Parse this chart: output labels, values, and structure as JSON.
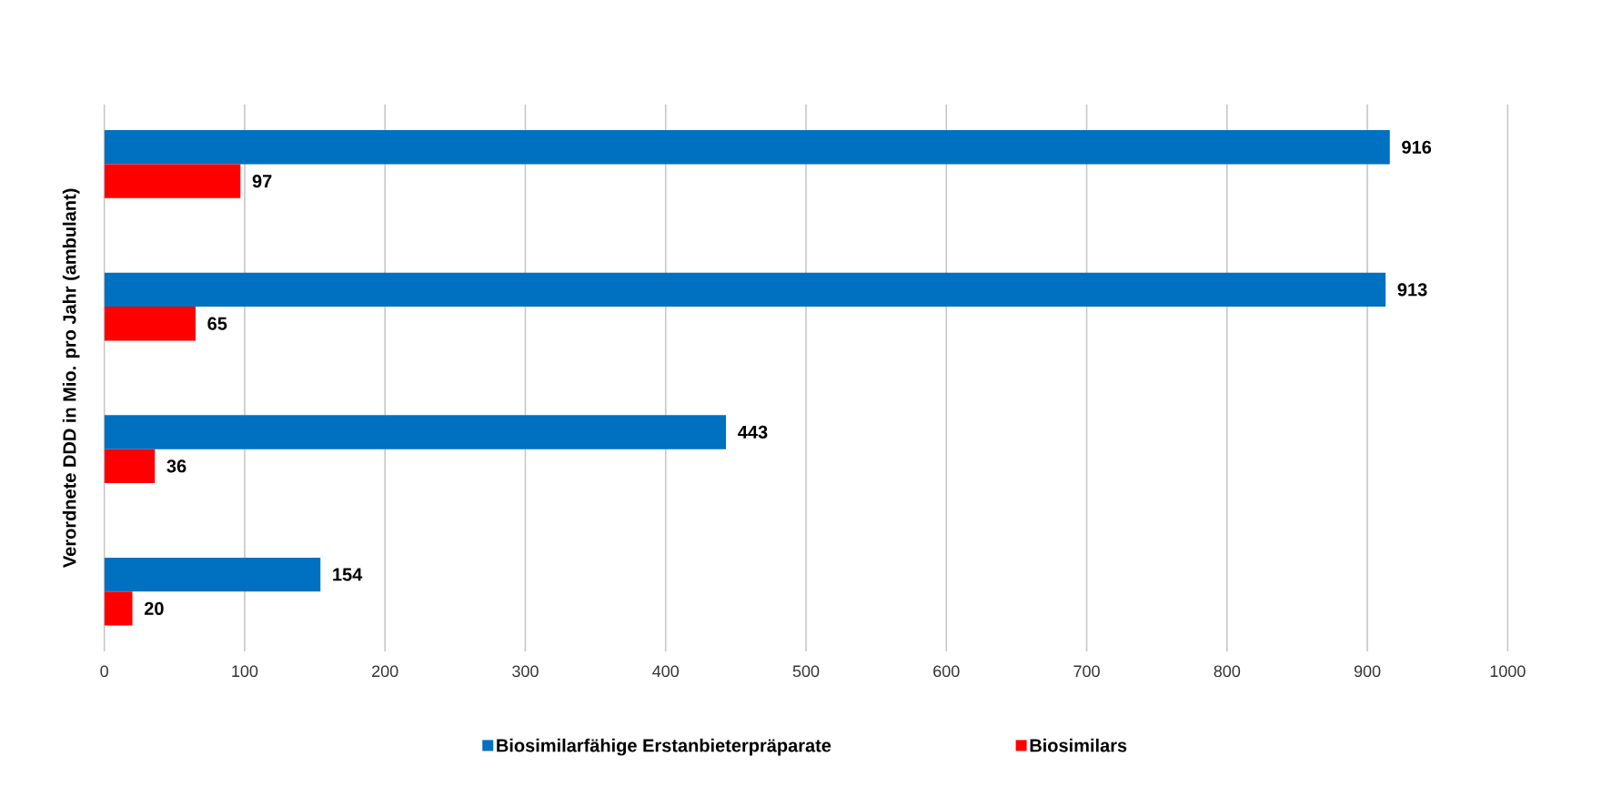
{
  "chart_data": {
    "type": "bar",
    "orientation": "horizontal",
    "ylabel": "Verordnete DDD in Mio. pro Jahr (ambulant)",
    "categories": [
      null,
      null,
      null,
      null
    ],
    "series": [
      {
        "name": "Biosimilarfähige Erstanbieterpräparate",
        "color": "#0070c0",
        "values": [
          916,
          913,
          443,
          154
        ]
      },
      {
        "name": "Biosimilars",
        "color": "#ff0000",
        "values": [
          97,
          65,
          36,
          20
        ]
      }
    ],
    "xlim": [
      0,
      1000
    ],
    "xticks": [
      0,
      100,
      200,
      300,
      400,
      500,
      600,
      700,
      800,
      900,
      1000
    ],
    "grid": "x",
    "legend": "bottom",
    "data_labels": true
  }
}
